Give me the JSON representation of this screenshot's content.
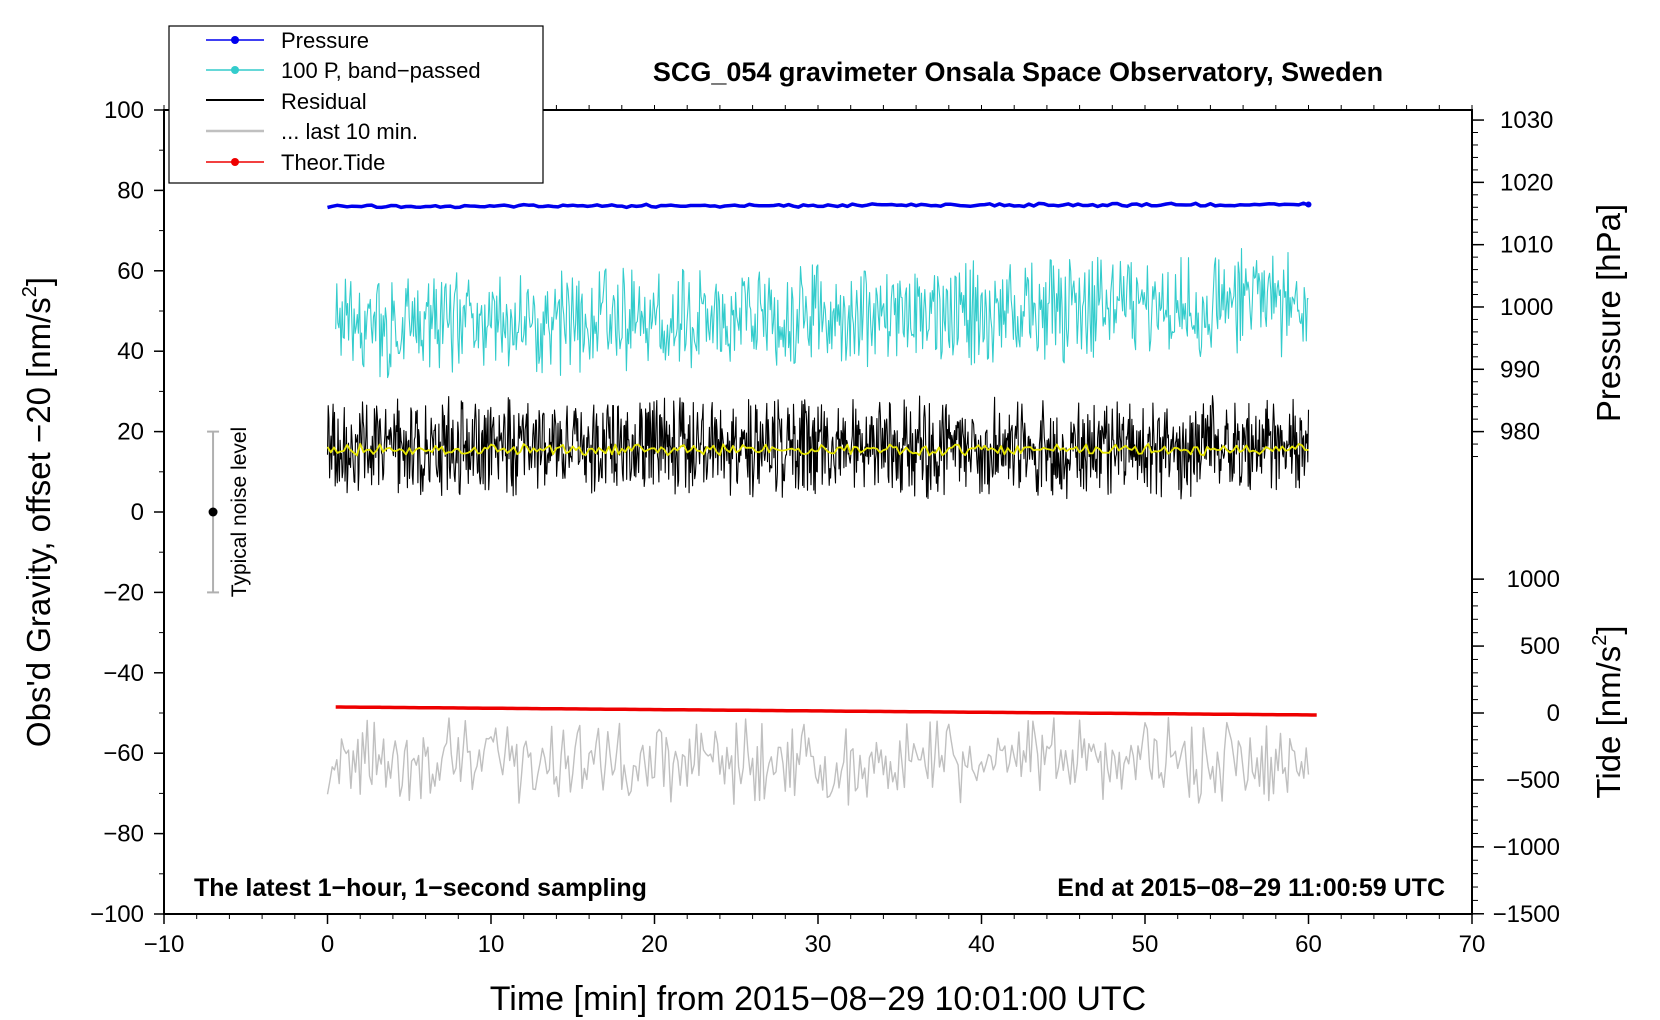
{
  "chart_data": {
    "type": "line",
    "title": "SCG_054 gravimeter Onsala Space Observatory, Sweden",
    "xlabel": "Time [min] from 2015−08−29 10:01:00 UTC",
    "ylabel_left": "Obs'd Gravity, offset −20 [nm/s",
    "ylabel_left_sup": "2",
    "ylabel_left_close": "]",
    "ylabel_pressure": "Pressure [hPa]",
    "ylabel_tide": "Tide [nm/s",
    "ylabel_tide_sup": "2",
    "ylabel_tide_close": "]",
    "xlim": [
      -10,
      70
    ],
    "ylim": [
      -100,
      100
    ],
    "x_ticks": [
      -10,
      0,
      10,
      20,
      30,
      40,
      50,
      60,
      70
    ],
    "x_tick_labels": [
      "−10",
      "0",
      "10",
      "20",
      "30",
      "40",
      "50",
      "60",
      "70"
    ],
    "y_ticks": [
      -100,
      -80,
      -60,
      -40,
      -20,
      0,
      20,
      40,
      60,
      80,
      100
    ],
    "y_tick_labels": [
      "−100",
      "−80",
      "−60",
      "−40",
      "−20",
      "0",
      "20",
      "40",
      "60",
      "80",
      "100"
    ],
    "pressure_axis": {
      "ticks": [
        980,
        990,
        1000,
        1010,
        1020,
        1030
      ],
      "tick_labels": [
        "980",
        "990",
        "1000",
        "1010",
        "1020",
        "1030"
      ],
      "left_value_at_980": 20,
      "left_value_per_hpa": 1.55
    },
    "tide_axis": {
      "ticks": [
        -1500,
        -1000,
        -500,
        0,
        500,
        1000
      ],
      "tick_labels": [
        "−1500",
        "−1000",
        "−500",
        "0",
        "500",
        "1000"
      ],
      "left_value_at_0": -50,
      "left_value_per_unit": 0.0333
    },
    "legend": {
      "position": "top-left",
      "entries": [
        {
          "label": "Pressure",
          "color": "#0000ee",
          "style": "line-dot"
        },
        {
          "label": "100 P, band−passed",
          "color": "#33cccc",
          "style": "line-dot"
        },
        {
          "label": "Residual",
          "color": "#000000",
          "style": "line"
        },
        {
          "label": "... last 10 min.",
          "color": "#c0c0c0",
          "style": "line"
        },
        {
          "label": "Theor.Tide",
          "color": "#ee0000",
          "style": "line-dot"
        }
      ]
    },
    "annotations": {
      "bottom_left": "The latest 1−hour, 1−second sampling",
      "bottom_right": "End at 2015−08−29 11:00:59 UTC",
      "noise_label": "Typical noise level",
      "noise_bar": {
        "x": -7,
        "center": 0,
        "low": -20,
        "high": 20
      }
    },
    "series": [
      {
        "name": "Pressure",
        "color": "#0000ee",
        "x_start": 0,
        "x_end": 60,
        "y_start": 76,
        "y_end": 76.5,
        "noise": 0.4,
        "stroke": 3.5
      },
      {
        "name": "100 P, band−passed",
        "color": "#33cccc",
        "x_start": 0.5,
        "x_end": 60,
        "y_start": 46,
        "y_end": 52,
        "noise": 14,
        "stroke": 1.1,
        "n": 900
      },
      {
        "name": "Residual",
        "color": "#000000",
        "x_start": 0,
        "x_end": 60,
        "y_start": 16,
        "y_end": 16,
        "noise": 13,
        "stroke": 1.1,
        "n": 1400
      },
      {
        "name": "Residual smoothed",
        "color": "#e6e600",
        "x_start": 0,
        "x_end": 60,
        "y_start": 15.5,
        "y_end": 15.5,
        "noise": 1.5,
        "stroke": 1.8,
        "n": 300
      },
      {
        "name": "Theor.Tide",
        "color": "#ee0000",
        "x_start": 0.5,
        "x_end": 60.5,
        "y_start": -48.5,
        "y_end": -50.5,
        "noise": 0,
        "stroke": 3.5
      },
      {
        "name": "... last 10 min.",
        "color": "#c0c0c0",
        "x_start": 0,
        "x_end": 60,
        "y_start": -62,
        "y_end": -62,
        "noise": 11,
        "stroke": 1.4,
        "n": 420
      }
    ]
  }
}
